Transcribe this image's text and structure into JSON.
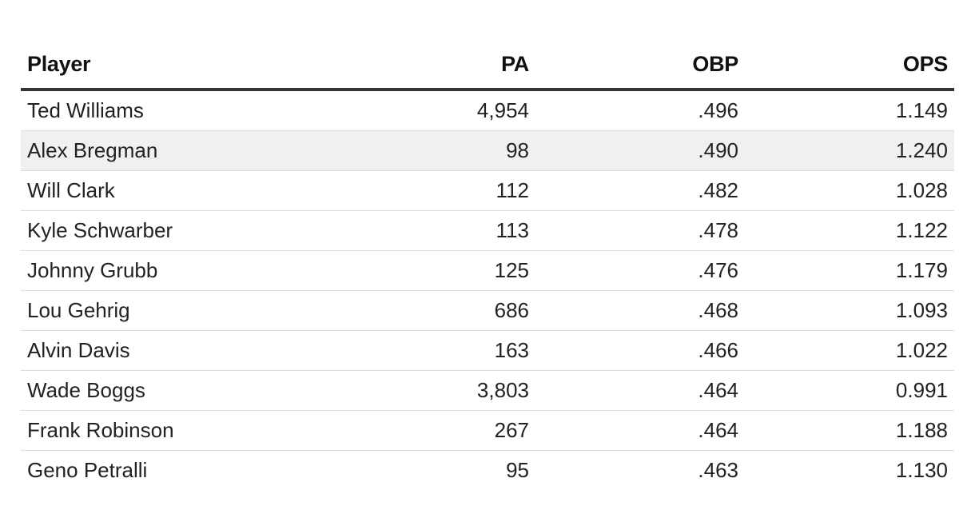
{
  "chart_data": {
    "type": "table",
    "columns": [
      "Player",
      "PA",
      "OBP",
      "OPS"
    ],
    "rows": [
      {
        "player": "Ted Williams",
        "pa": "4,954",
        "obp": ".496",
        "ops": "1.149",
        "highlight": false
      },
      {
        "player": "Alex Bregman",
        "pa": "98",
        "obp": ".490",
        "ops": "1.240",
        "highlight": true
      },
      {
        "player": "Will Clark",
        "pa": "112",
        "obp": ".482",
        "ops": "1.028",
        "highlight": false
      },
      {
        "player": "Kyle Schwarber",
        "pa": "113",
        "obp": ".478",
        "ops": "1.122",
        "highlight": false
      },
      {
        "player": "Johnny Grubb",
        "pa": "125",
        "obp": ".476",
        "ops": "1.179",
        "highlight": false
      },
      {
        "player": "Lou Gehrig",
        "pa": "686",
        "obp": ".468",
        "ops": "1.093",
        "highlight": false
      },
      {
        "player": "Alvin Davis",
        "pa": "163",
        "obp": ".466",
        "ops": "1.022",
        "highlight": false
      },
      {
        "player": "Wade Boggs",
        "pa": "3,803",
        "obp": ".464",
        "ops": "0.991",
        "highlight": false
      },
      {
        "player": "Frank Robinson",
        "pa": "267",
        "obp": ".464",
        "ops": "1.188",
        "highlight": false
      },
      {
        "player": "Geno Petralli",
        "pa": "95",
        "obp": ".463",
        "ops": "1.130",
        "highlight": false
      }
    ],
    "highlight_color": "#f0f0f0",
    "header_rule_color": "#333333"
  }
}
